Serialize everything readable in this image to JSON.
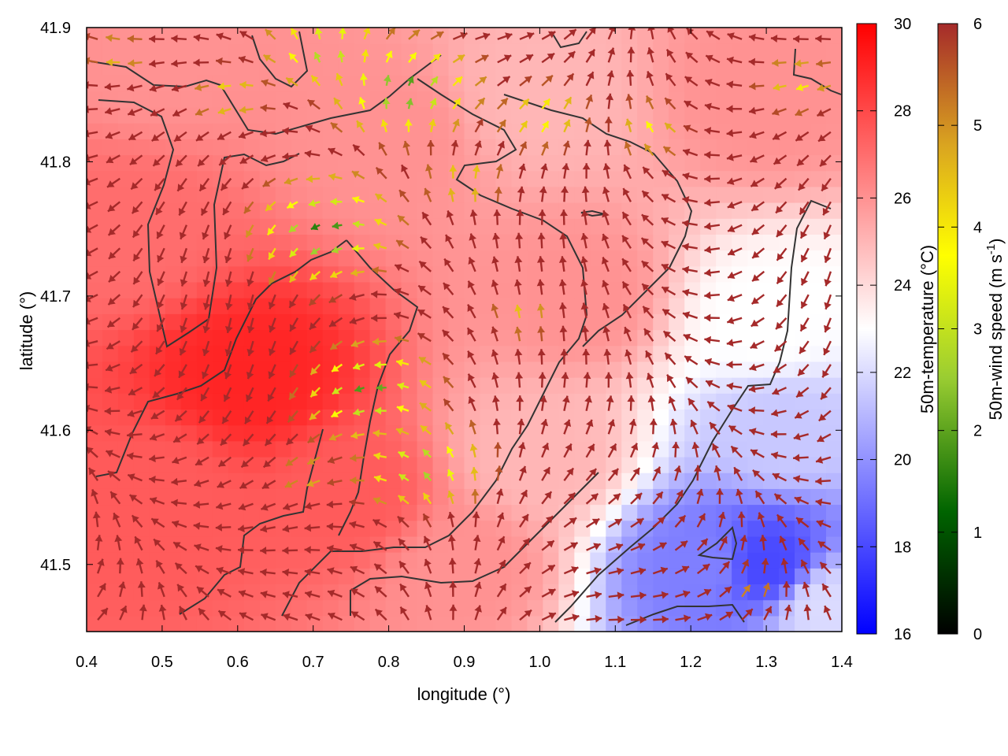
{
  "chart_data": {
    "type": "heatmap",
    "title": "",
    "xlabel": "longitude (°)",
    "ylabel": "latitude (°)",
    "xlim": [
      0.4,
      1.4
    ],
    "ylim": [
      41.45,
      41.9
    ],
    "x_ticks": [
      "0.4",
      "0.5",
      "0.6",
      "0.7",
      "0.8",
      "0.9",
      "1.0",
      "1.1",
      "1.2",
      "1.3",
      "1.4"
    ],
    "y_ticks": [
      "41.5",
      "41.6",
      "41.7",
      "41.8",
      "41.9"
    ],
    "temperature_colorbar": {
      "label": "50m-temperature (°C)",
      "range": [
        16,
        30
      ],
      "ticks": [
        "16",
        "18",
        "20",
        "22",
        "24",
        "26",
        "28",
        "30"
      ],
      "colors": [
        "#0000ff",
        "#ffffff",
        "#ff0000"
      ]
    },
    "wind_colorbar": {
      "label_main": "50m-wind speed (m s",
      "label_sup": "-1",
      "label_end": ")",
      "range": [
        0,
        6
      ],
      "ticks": [
        "0",
        "1",
        "2",
        "3",
        "4",
        "5",
        "6"
      ],
      "colors": [
        "#000000",
        "#006400",
        "#9acd32",
        "#ffff00",
        "#daa520",
        "#a52a2a"
      ]
    },
    "temperature_field": [
      {
        "lon": 0.62,
        "lat": 41.64,
        "value": 29.0
      },
      {
        "lon": 0.5,
        "lat": 41.55,
        "value": 27.5
      },
      {
        "lon": 0.45,
        "lat": 41.75,
        "value": 27.0
      },
      {
        "lon": 0.8,
        "lat": 41.82,
        "value": 26.0
      },
      {
        "lon": 0.75,
        "lat": 41.55,
        "value": 27.5
      },
      {
        "lon": 1.0,
        "lat": 41.85,
        "value": 25.0
      },
      {
        "lon": 1.05,
        "lat": 41.7,
        "value": 26.0
      },
      {
        "lon": 1.3,
        "lat": 41.85,
        "value": 26.0
      },
      {
        "lon": 1.3,
        "lat": 41.68,
        "value": 23.0
      },
      {
        "lon": 1.32,
        "lat": 41.6,
        "value": 21.5
      },
      {
        "lon": 1.22,
        "lat": 41.5,
        "value": 19.5
      },
      {
        "lon": 1.3,
        "lat": 41.5,
        "value": 18.0
      },
      {
        "lon": 1.0,
        "lat": 41.58,
        "value": 25.0
      },
      {
        "lon": 1.38,
        "lat": 41.47,
        "value": 22.0
      },
      {
        "lon": 0.5,
        "lat": 41.88,
        "value": 26.0
      },
      {
        "lon": 0.9,
        "lat": 41.5,
        "value": 26.0
      }
    ],
    "wind_centers": [
      {
        "lon": 0.72,
        "lat": 41.75,
        "speed": 1.0
      },
      {
        "lon": 0.78,
        "lat": 41.63,
        "speed": 1.3
      },
      {
        "lon": 0.82,
        "lat": 41.85,
        "speed": 1.2
      },
      {
        "lon": 0.85,
        "lat": 41.57,
        "speed": 1.8
      },
      {
        "lon": 0.72,
        "lat": 41.88,
        "speed": 2.0
      },
      {
        "lon": 1.0,
        "lat": 41.83,
        "speed": 3.0
      },
      {
        "lon": 0.9,
        "lat": 41.78,
        "speed": 3.5
      },
      {
        "lon": 0.98,
        "lat": 41.68,
        "speed": 4.0
      },
      {
        "lon": 0.6,
        "lat": 41.85,
        "speed": 3.5
      },
      {
        "lon": 0.45,
        "lat": 41.88,
        "speed": 4.0
      },
      {
        "lon": 1.15,
        "lat": 41.82,
        "speed": 3.5
      },
      {
        "lon": 1.35,
        "lat": 41.86,
        "speed": 3.5
      },
      {
        "lon": 0.7,
        "lat": 41.57,
        "speed": 4.0
      },
      {
        "lon": 1.28,
        "lat": 41.48,
        "speed": 4.5
      }
    ]
  }
}
